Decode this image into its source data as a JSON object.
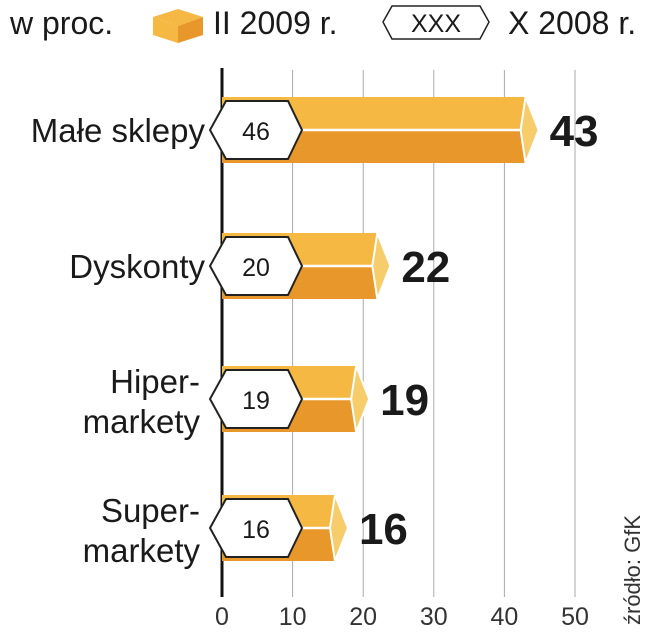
{
  "chart_data": {
    "type": "bar",
    "orientation": "horizontal",
    "unit_label": "w proc.",
    "categories": [
      [
        "Małe sklepy"
      ],
      [
        "Dyskonty"
      ],
      [
        "Hiper-",
        "markety"
      ],
      [
        "Super-",
        "markety"
      ]
    ],
    "series": [
      {
        "name": "II 2009 r.",
        "values": [
          43,
          22,
          19,
          16
        ],
        "color_top": "#F4B843",
        "color_bottom": "#E8982A"
      },
      {
        "name": "X 2008 r.",
        "values": [
          46,
          20,
          19,
          16
        ],
        "marker_sample": "XXX"
      }
    ],
    "xticks": [
      "0",
      "10",
      "20",
      "30",
      "40",
      "50"
    ],
    "xlim": [
      0,
      50
    ],
    "grid": true,
    "legend_position": "top",
    "source": "źródło: GfK"
  }
}
